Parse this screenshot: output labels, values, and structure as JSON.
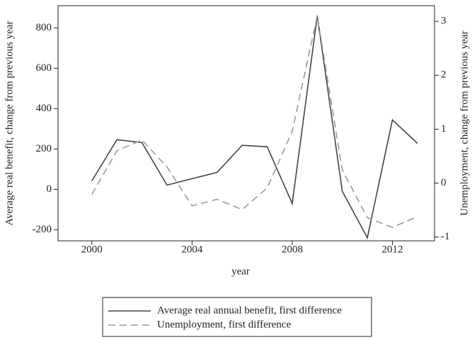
{
  "chart_data": {
    "type": "line",
    "x": [
      2000,
      2001,
      2002,
      2003,
      2004,
      2005,
      2006,
      2007,
      2008,
      2009,
      2010,
      2011,
      2012,
      2013
    ],
    "xlabel": "year",
    "ylabel": "Average real benefit, change from previous year",
    "y2label": "Unemployment, change from previous year",
    "xlim": [
      1998.65,
      2013.68
    ],
    "xticks": [
      2000,
      2004,
      2008,
      2012
    ],
    "ylim": [
      -255,
      910
    ],
    "yticks": [
      -200,
      0,
      200,
      400,
      600,
      800
    ],
    "y2lim": [
      -1.07,
      3.29
    ],
    "y2ticks": [
      -1,
      0,
      1,
      2,
      3
    ],
    "grid": false,
    "legend": "bottom",
    "series": [
      {
        "name": "Average real annual benefit, first difference",
        "color": "#444444",
        "dash": "solid",
        "values": [
          42,
          246,
          232,
          21,
          53,
          84,
          218,
          211,
          -70,
          860,
          -10,
          -240,
          344,
          228
        ]
      },
      {
        "name": "Unemployment, first difference",
        "color": "#999999",
        "dash": "dashed",
        "axis": "y2",
        "values": [
          -0.21,
          0.6,
          0.8,
          0.3,
          -0.42,
          -0.3,
          -0.49,
          -0.09,
          0.96,
          3.1,
          0.24,
          -0.64,
          -0.82,
          -0.62
        ]
      }
    ]
  }
}
